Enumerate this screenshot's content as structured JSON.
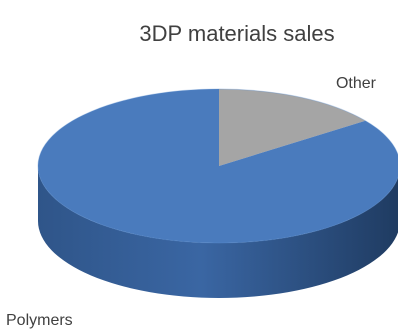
{
  "chart_data": {
    "type": "pie",
    "title": "3DP materials sales",
    "style": "3d",
    "categories": [
      "Polymers",
      "Other"
    ],
    "values": [
      85,
      15
    ],
    "colors": {
      "Polymers": "#4a7bbd",
      "Other": "#a5a5a5"
    },
    "legend": "none",
    "data_labels": "category names"
  }
}
